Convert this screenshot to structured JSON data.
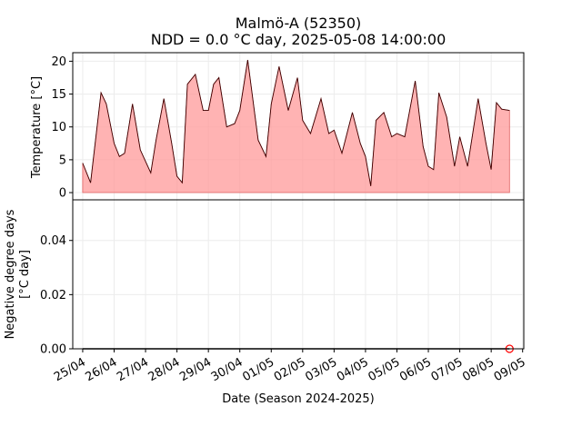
{
  "chart_data": [
    {
      "type": "area",
      "title_line1": "Malmö-A (52350)",
      "title_line2": "NDD = 0.0 °C day, 2025-05-08 14:00:00",
      "ylabel": "Temperature [°C]",
      "ylim": [
        -1.1,
        21.3
      ],
      "yticks": [
        0,
        5,
        10,
        15,
        20
      ],
      "ytick_labels": [
        "0",
        "5",
        "10",
        "15",
        "20"
      ],
      "xlim": [
        "2025-04-24T16:24",
        "2025-05-09T00:54"
      ],
      "grid": true,
      "fill_color": "#ff9999",
      "line_color": "#3d0000",
      "series": [
        {
          "x": [
            "2025-04-25T00:00",
            "2025-04-25T06:00",
            "2025-04-25T14:00",
            "2025-04-25T18:00",
            "2025-04-26T00:00",
            "2025-04-26T04:00",
            "2025-04-26T08:00",
            "2025-04-26T14:00",
            "2025-04-26T20:00",
            "2025-04-27T04:00",
            "2025-04-27T08:00",
            "2025-04-27T14:00",
            "2025-04-27T20:00",
            "2025-04-28T00:00",
            "2025-04-28T04:00",
            "2025-04-28T08:00",
            "2025-04-28T14:00",
            "2025-04-28T20:00",
            "2025-04-29T00:00",
            "2025-04-29T04:00",
            "2025-04-29T08:00",
            "2025-04-29T14:00",
            "2025-04-29T20:00",
            "2025-04-30T00:00",
            "2025-04-30T06:00",
            "2025-04-30T14:00",
            "2025-04-30T20:00",
            "2025-05-01T00:00",
            "2025-05-01T06:00",
            "2025-05-01T13:00",
            "2025-05-01T20:00",
            "2025-05-02T00:00",
            "2025-05-02T06:00",
            "2025-05-02T14:00",
            "2025-05-02T20:00",
            "2025-05-03T00:00",
            "2025-05-03T06:00",
            "2025-05-03T14:00",
            "2025-05-03T20:00",
            "2025-05-04T00:00",
            "2025-05-04T04:00",
            "2025-05-04T08:00",
            "2025-05-04T14:00",
            "2025-05-04T20:00",
            "2025-05-05T00:00",
            "2025-05-05T06:00",
            "2025-05-05T14:00",
            "2025-05-05T20:00",
            "2025-05-06T00:00",
            "2025-05-06T04:00",
            "2025-05-06T08:00",
            "2025-05-06T14:00",
            "2025-05-06T20:00",
            "2025-05-07T00:00",
            "2025-05-07T06:00",
            "2025-05-07T14:00",
            "2025-05-07T20:00",
            "2025-05-08T00:00",
            "2025-05-08T04:00",
            "2025-05-08T08:00",
            "2025-05-08T14:00"
          ],
          "values": [
            4.5,
            1.5,
            15.2,
            13.5,
            7.5,
            5.5,
            6.0,
            13.5,
            6.5,
            3.0,
            8.0,
            14.3,
            7.5,
            2.5,
            1.5,
            16.5,
            18.0,
            12.5,
            12.5,
            16.5,
            17.5,
            10.0,
            10.5,
            12.5,
            20.2,
            8.0,
            5.5,
            13.5,
            19.2,
            12.5,
            17.5,
            11.0,
            9.0,
            14.3,
            9.0,
            9.5,
            6.0,
            12.2,
            7.5,
            5.5,
            1.0,
            11.0,
            12.2,
            8.5,
            9.0,
            8.5,
            17.0,
            7.0,
            4.0,
            3.5,
            15.2,
            11.5,
            4.0,
            8.5,
            4.0,
            14.3,
            7.5,
            3.5,
            13.7,
            12.7,
            12.5
          ]
        }
      ]
    },
    {
      "type": "line",
      "ylabel_line1": "Negative degree days",
      "ylabel_line2": "[°C day]",
      "xlabel": "Date (Season 2024-2025)",
      "ylim": [
        0,
        0.055
      ],
      "yticks": [
        0,
        0.02,
        0.04
      ],
      "ytick_labels": [
        "0.00",
        "0.02",
        "0.04"
      ],
      "xlim": [
        "2025-04-24T16:24",
        "2025-05-09T00:54"
      ],
      "xticks": [
        "2025-04-25",
        "2025-04-26",
        "2025-04-27",
        "2025-04-28",
        "2025-04-29",
        "2025-04-30",
        "2025-05-01",
        "2025-05-02",
        "2025-05-03",
        "2025-05-04",
        "2025-05-05",
        "2025-05-06",
        "2025-05-07",
        "2025-05-08",
        "2025-05-09"
      ],
      "xtick_labels": [
        "25/04",
        "26/04",
        "27/04",
        "28/04",
        "29/04",
        "30/04",
        "01/05",
        "02/05",
        "03/05",
        "04/05",
        "05/05",
        "06/05",
        "07/05",
        "08/05",
        "09/05"
      ],
      "grid": true,
      "line_color": "#000000",
      "marker_color": "#ff0000",
      "series": [
        {
          "x": [
            "2025-04-25T00:00",
            "2025-05-08T14:00"
          ],
          "values": [
            0.0,
            0.0
          ]
        }
      ],
      "marker": {
        "x": "2025-05-08T14:00",
        "y": 0.0
      }
    }
  ]
}
